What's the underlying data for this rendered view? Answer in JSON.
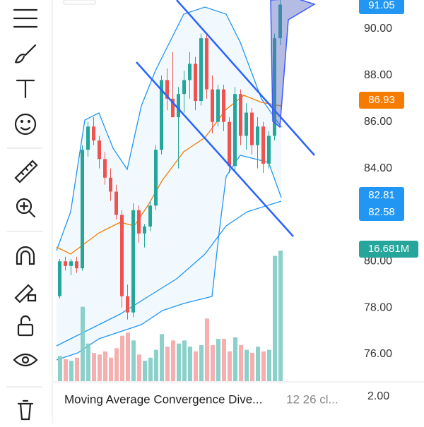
{
  "chart": {
    "price_ticks": [
      {
        "value": 90,
        "label": "90.00"
      },
      {
        "value": 88,
        "label": "88.00"
      },
      {
        "value": 86,
        "label": "86.00"
      },
      {
        "value": 84,
        "label": "84.00"
      },
      {
        "value": 80,
        "label": "80.00"
      },
      {
        "value": 78,
        "label": "78.00"
      },
      {
        "value": 76,
        "label": "76.00"
      }
    ],
    "badges": {
      "last": "91.05",
      "ma": "86.93",
      "upper": "82.81",
      "lower": "82.58",
      "volume": "16.681M"
    },
    "candles": [
      [
        78.5,
        80.1,
        78.4,
        80.0
      ],
      [
        80.0,
        80.2,
        79.6,
        79.8
      ],
      [
        79.8,
        80.1,
        79.4,
        80.0
      ],
      [
        80.0,
        80.2,
        79.5,
        79.7
      ],
      [
        79.7,
        85.0,
        79.6,
        84.8
      ],
      [
        84.8,
        86.0,
        84.5,
        85.8
      ],
      [
        85.8,
        86.2,
        85.0,
        85.2
      ],
      [
        85.2,
        85.4,
        84.0,
        84.4
      ],
      [
        84.4,
        84.7,
        83.3,
        83.6
      ],
      [
        83.6,
        84.0,
        82.6,
        83.0
      ],
      [
        83.0,
        83.3,
        81.8,
        82.0
      ],
      [
        82.0,
        82.2,
        78.0,
        78.5
      ],
      [
        78.5,
        79.0,
        77.5,
        77.8
      ],
      [
        77.8,
        82.5,
        77.6,
        82.2
      ],
      [
        82.2,
        82.4,
        80.8,
        81.2
      ],
      [
        81.2,
        81.6,
        80.6,
        81.5
      ],
      [
        81.5,
        82.6,
        81.3,
        82.4
      ],
      [
        82.4,
        85.0,
        82.2,
        84.8
      ],
      [
        84.8,
        88.0,
        84.6,
        87.8
      ],
      [
        87.8,
        88.3,
        86.5,
        87.0
      ],
      [
        87.0,
        89.0,
        86.2,
        86.2
      ],
      [
        86.2,
        87.5,
        84.0,
        87.2
      ],
      [
        87.2,
        88.2,
        86.4,
        87.8
      ],
      [
        87.8,
        89.0,
        87.0,
        88.5
      ],
      [
        88.5,
        88.8,
        86.5,
        86.9
      ],
      [
        86.9,
        89.8,
        86.7,
        89.6
      ],
      [
        89.6,
        89.8,
        87.0,
        87.4
      ],
      [
        87.4,
        88.0,
        85.5,
        86.0
      ],
      [
        86.0,
        87.6,
        85.8,
        87.4
      ],
      [
        87.4,
        87.6,
        85.6,
        86.0
      ],
      [
        86.0,
        86.2,
        83.8,
        84.1
      ],
      [
        84.1,
        87.5,
        83.9,
        87.2
      ],
      [
        87.2,
        87.4,
        85.0,
        85.4
      ],
      [
        85.4,
        86.8,
        84.8,
        86.4
      ],
      [
        86.4,
        86.6,
        84.6,
        85.0
      ],
      [
        85.0,
        86.2,
        84.0,
        85.8
      ],
      [
        85.8,
        86.0,
        83.8,
        84.2
      ],
      [
        84.2,
        85.6,
        84.0,
        85.4
      ],
      [
        85.4,
        89.8,
        85.2,
        89.6
      ],
      [
        89.6,
        91.4,
        89.3,
        91.05
      ]
    ],
    "volumes": [
      3.2,
      2.8,
      2.6,
      3.0,
      9.5,
      4.8,
      3.6,
      3.4,
      3.8,
      3.0,
      4.2,
      5.8,
      6.2,
      5.2,
      3.4,
      2.6,
      3.0,
      4.0,
      6.0,
      4.4,
      5.2,
      4.8,
      5.2,
      4.4,
      3.8,
      4.6,
      8.0,
      4.6,
      5.4,
      5.4,
      3.8,
      5.6,
      4.6,
      4.0,
      3.6,
      4.4,
      3.8,
      4.0,
      16.0,
      16.681
    ],
    "indicator": {
      "name": "Moving Average Convergence Dive...",
      "params": "12 26 cl...",
      "scale": "2.00"
    }
  }
}
